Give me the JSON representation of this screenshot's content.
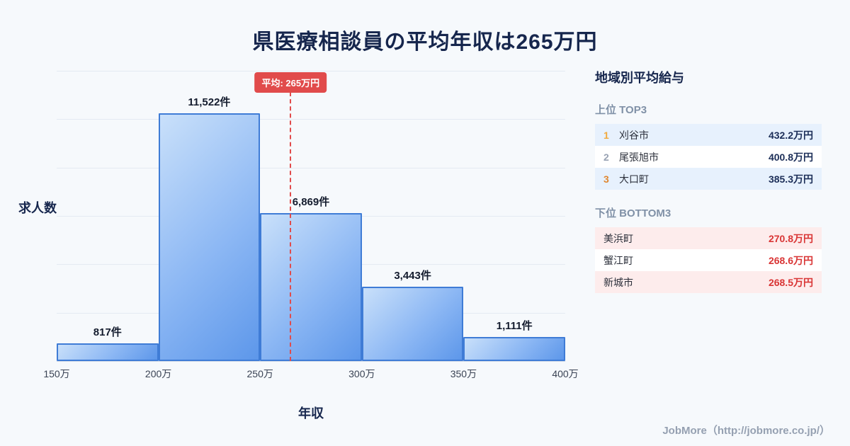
{
  "title": "県医療相談員の平均年収は265万円",
  "chart_data": {
    "type": "bar",
    "title": "県医療相談員の平均年収は265万円",
    "categories": [
      "150万-200万",
      "200万-250万",
      "250万-300万",
      "300万-350万",
      "350万-400万"
    ],
    "values": [
      817,
      11522,
      6869,
      3443,
      1111
    ],
    "value_labels": [
      "817件",
      "11,522件",
      "6,869件",
      "3,443件",
      "1,111件"
    ],
    "x_ticks": [
      "150万",
      "200万",
      "250万",
      "300万",
      "350万",
      "400万"
    ],
    "xlabel": "年収",
    "ylabel": "求人数",
    "ylim": [
      0,
      13500
    ],
    "grid": "horizontal",
    "average_line": {
      "label": "平均: 265万円",
      "value": 265,
      "x_range": [
        150,
        400
      ]
    }
  },
  "sidebar": {
    "title": "地域別平均給与",
    "top_section": {
      "heading": "上位 TOP3",
      "rows": [
        {
          "rank": "1",
          "name": "刈谷市",
          "value": "432.2万円"
        },
        {
          "rank": "2",
          "name": "尾張旭市",
          "value": "400.8万円"
        },
        {
          "rank": "3",
          "name": "大口町",
          "value": "385.3万円"
        }
      ]
    },
    "bottom_section": {
      "heading": "下位 BOTTOM3",
      "rows": [
        {
          "name": "美浜町",
          "value": "270.8万円"
        },
        {
          "name": "蟹江町",
          "value": "268.6万円"
        },
        {
          "name": "新城市",
          "value": "268.5万円"
        }
      ]
    }
  },
  "footer": {
    "credit": "JobMore（http://jobmore.co.jp/）"
  },
  "colors": {
    "background": "#f6f9fc",
    "title_navy": "#16264d",
    "bar_fill_light": "#c9e0fa",
    "bar_fill_dark": "#5d97ea",
    "bar_border": "#3f7cd6",
    "average_red": "#e14b4b",
    "top_row_highlight": "#e7f1fd",
    "bottom_row_highlight": "#fdecec",
    "top_value_navy": "#1c2e58",
    "bottom_value_red": "#d93535",
    "rank1_gold": "#f2a93b",
    "rank2_silver": "#98a2b3",
    "rank3_bronze": "#e0862f"
  }
}
